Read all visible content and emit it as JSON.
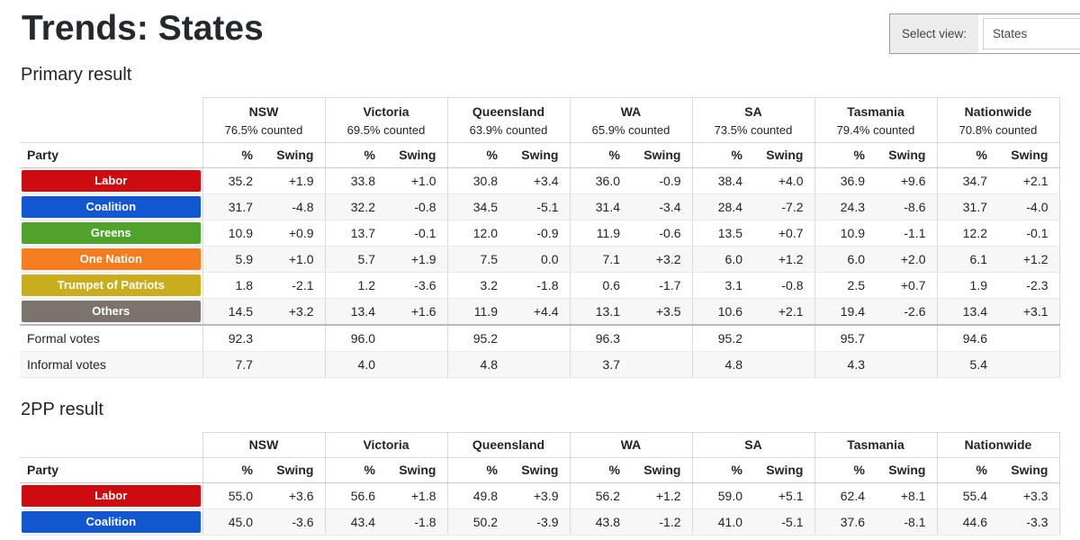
{
  "page": {
    "title": "Trends: States"
  },
  "view_selector": {
    "label": "Select view:",
    "value": "States"
  },
  "table_labels": {
    "party": "Party",
    "pct": "%",
    "swing": "Swing"
  },
  "party_colors": {
    "Labor": "#ce0b10",
    "Coalition": "#1256d0",
    "Greens": "#4fa32b",
    "One Nation": "#f47d20",
    "Trumpet of Patriots": "#caad1d",
    "Others": "#7b746c"
  },
  "primary": {
    "heading": "Primary result",
    "columns": [
      {
        "name": "NSW",
        "counted": "76.5% counted"
      },
      {
        "name": "Victoria",
        "counted": "69.5% counted"
      },
      {
        "name": "Queensland",
        "counted": "63.9% counted"
      },
      {
        "name": "WA",
        "counted": "65.9% counted"
      },
      {
        "name": "SA",
        "counted": "73.5% counted"
      },
      {
        "name": "Tasmania",
        "counted": "79.4% counted"
      },
      {
        "name": "Nationwide",
        "counted": "70.8% counted"
      }
    ],
    "rows": [
      {
        "party": "Labor",
        "cells": [
          [
            "35.2",
            "+1.9"
          ],
          [
            "33.8",
            "+1.0"
          ],
          [
            "30.8",
            "+3.4"
          ],
          [
            "36.0",
            "-0.9"
          ],
          [
            "38.4",
            "+4.0"
          ],
          [
            "36.9",
            "+9.6"
          ],
          [
            "34.7",
            "+2.1"
          ]
        ]
      },
      {
        "party": "Coalition",
        "cells": [
          [
            "31.7",
            "-4.8"
          ],
          [
            "32.2",
            "-0.8"
          ],
          [
            "34.5",
            "-5.1"
          ],
          [
            "31.4",
            "-3.4"
          ],
          [
            "28.4",
            "-7.2"
          ],
          [
            "24.3",
            "-8.6"
          ],
          [
            "31.7",
            "-4.0"
          ]
        ]
      },
      {
        "party": "Greens",
        "cells": [
          [
            "10.9",
            "+0.9"
          ],
          [
            "13.7",
            "-0.1"
          ],
          [
            "12.0",
            "-0.9"
          ],
          [
            "11.9",
            "-0.6"
          ],
          [
            "13.5",
            "+0.7"
          ],
          [
            "10.9",
            "-1.1"
          ],
          [
            "12.2",
            "-0.1"
          ]
        ]
      },
      {
        "party": "One Nation",
        "cells": [
          [
            "5.9",
            "+1.0"
          ],
          [
            "5.7",
            "+1.9"
          ],
          [
            "7.5",
            "0.0"
          ],
          [
            "7.1",
            "+3.2"
          ],
          [
            "6.0",
            "+1.2"
          ],
          [
            "6.0",
            "+2.0"
          ],
          [
            "6.1",
            "+1.2"
          ]
        ]
      },
      {
        "party": "Trumpet of Patriots",
        "cells": [
          [
            "1.8",
            "-2.1"
          ],
          [
            "1.2",
            "-3.6"
          ],
          [
            "3.2",
            "-1.8"
          ],
          [
            "0.6",
            "-1.7"
          ],
          [
            "3.1",
            "-0.8"
          ],
          [
            "2.5",
            "+0.7"
          ],
          [
            "1.9",
            "-2.3"
          ]
        ]
      },
      {
        "party": "Others",
        "cells": [
          [
            "14.5",
            "+3.2"
          ],
          [
            "13.4",
            "+1.6"
          ],
          [
            "11.9",
            "+4.4"
          ],
          [
            "13.1",
            "+3.5"
          ],
          [
            "10.6",
            "+2.1"
          ],
          [
            "19.4",
            "-2.6"
          ],
          [
            "13.4",
            "+3.1"
          ]
        ]
      }
    ],
    "totals": [
      {
        "label": "Formal votes",
        "values": [
          "92.3",
          "96.0",
          "95.2",
          "96.3",
          "95.2",
          "95.7",
          "94.6"
        ]
      },
      {
        "label": "Informal votes",
        "values": [
          "7.7",
          "4.0",
          "4.8",
          "3.7",
          "4.8",
          "4.3",
          "5.4"
        ]
      }
    ]
  },
  "tpp": {
    "heading": "2PP result",
    "columns": [
      {
        "name": "NSW"
      },
      {
        "name": "Victoria"
      },
      {
        "name": "Queensland"
      },
      {
        "name": "WA"
      },
      {
        "name": "SA"
      },
      {
        "name": "Tasmania"
      },
      {
        "name": "Nationwide"
      }
    ],
    "rows": [
      {
        "party": "Labor",
        "cells": [
          [
            "55.0",
            "+3.6"
          ],
          [
            "56.6",
            "+1.8"
          ],
          [
            "49.8",
            "+3.9"
          ],
          [
            "56.2",
            "+1.2"
          ],
          [
            "59.0",
            "+5.1"
          ],
          [
            "62.4",
            "+8.1"
          ],
          [
            "55.4",
            "+3.3"
          ]
        ]
      },
      {
        "party": "Coalition",
        "cells": [
          [
            "45.0",
            "-3.6"
          ],
          [
            "43.4",
            "-1.8"
          ],
          [
            "50.2",
            "-3.9"
          ],
          [
            "43.8",
            "-1.2"
          ],
          [
            "41.0",
            "-5.1"
          ],
          [
            "37.6",
            "-8.1"
          ],
          [
            "44.6",
            "-3.3"
          ]
        ]
      }
    ]
  }
}
